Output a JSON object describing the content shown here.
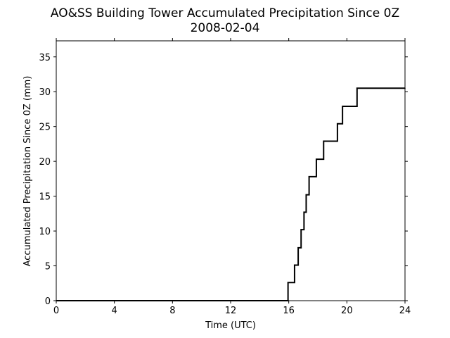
{
  "chart_data": {
    "type": "line",
    "title": "AO&SS Building Tower Accumulated Precipitation Since 0Z",
    "subtitle": "2008-02-04",
    "xlabel": "Time (UTC)",
    "ylabel": "Accumulated Precipitation Since 0Z (mm)",
    "xlim": [
      0,
      24
    ],
    "ylim": [
      0,
      37.3
    ],
    "xticks": [
      0,
      4,
      8,
      12,
      16,
      20,
      24
    ],
    "yticks": [
      0,
      5,
      10,
      15,
      20,
      25,
      30,
      35
    ],
    "grid": false,
    "line_color": "#000000",
    "series": [
      {
        "step": "post",
        "x": [
          0,
          15.95,
          16.4,
          16.65,
          16.85,
          17.05,
          17.2,
          17.4,
          17.9,
          18.4,
          19.35,
          19.7,
          20.7,
          24
        ],
        "y": [
          0,
          2.6,
          5.1,
          7.6,
          10.2,
          12.7,
          15.2,
          17.8,
          20.3,
          22.9,
          25.4,
          27.9,
          30.5,
          30.5
        ]
      }
    ]
  }
}
